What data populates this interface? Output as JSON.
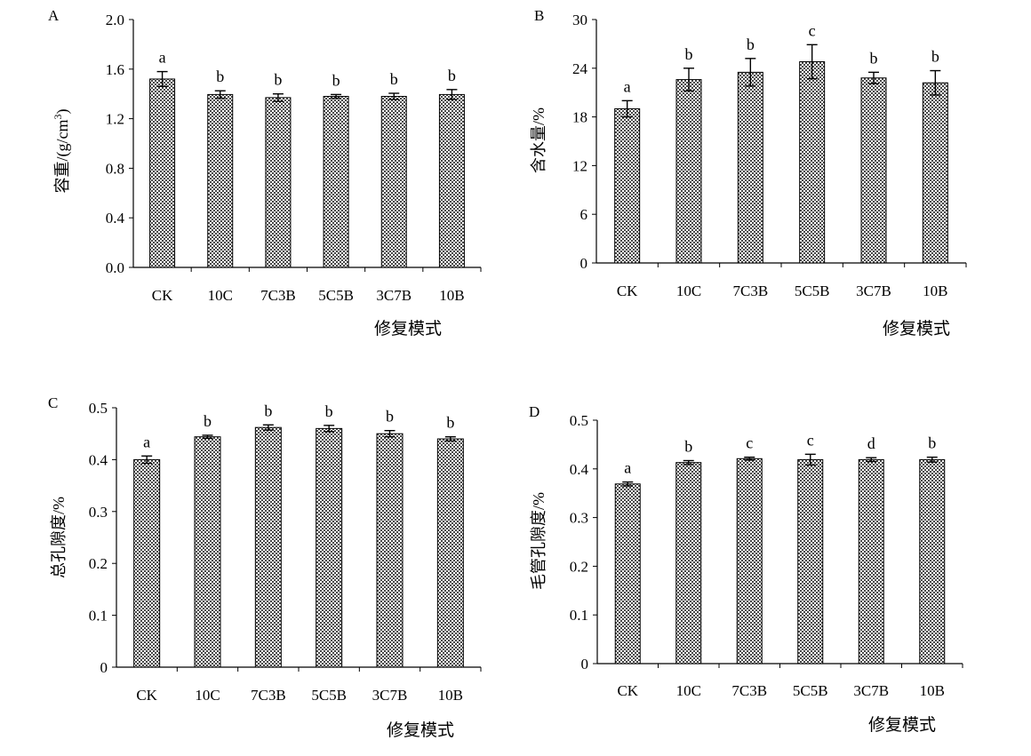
{
  "x_axis_title": "修复模式",
  "chart_data": [
    {
      "type": "bar",
      "panel": "A",
      "ylabel": "容重/(g/cm³)",
      "ylabel_parts": {
        "main": "容重/(g/cm",
        "sup": "3",
        "tail": ")"
      },
      "xlabel": "修复模式",
      "categories": [
        "CK",
        "10C",
        "7C3B",
        "5C5B",
        "3C7B",
        "10B"
      ],
      "values": [
        1.52,
        1.395,
        1.37,
        1.38,
        1.38,
        1.395
      ],
      "errors": [
        0.06,
        0.03,
        0.03,
        0.015,
        0.025,
        0.04
      ],
      "significance": [
        "a",
        "b",
        "b",
        "b",
        "b",
        "b"
      ],
      "ylim": [
        0,
        2.0
      ],
      "yticks": [
        "0.0",
        "0.4",
        "0.8",
        "1.2",
        "1.6",
        "2.0"
      ],
      "ytick_values": [
        0,
        0.4,
        0.8,
        1.2,
        1.6,
        2.0
      ],
      "grid": false
    },
    {
      "type": "bar",
      "panel": "B",
      "ylabel": "含水量/%",
      "xlabel": "修复模式",
      "categories": [
        "CK",
        "10C",
        "7C3B",
        "5C5B",
        "3C7B",
        "10B"
      ],
      "values": [
        19.0,
        22.6,
        23.5,
        24.8,
        22.8,
        22.2
      ],
      "errors": [
        1.0,
        1.4,
        1.7,
        2.1,
        0.7,
        1.5
      ],
      "significance": [
        "a",
        "b",
        "b",
        "c",
        "b",
        "b"
      ],
      "ylim": [
        0,
        30
      ],
      "yticks": [
        "0",
        "6",
        "12",
        "18",
        "24",
        "30"
      ],
      "ytick_values": [
        0,
        6,
        12,
        18,
        24,
        30
      ],
      "grid": false
    },
    {
      "type": "bar",
      "panel": "C",
      "ylabel": "总孔隙度/%",
      "xlabel": "修复模式",
      "categories": [
        "CK",
        "10C",
        "7C3B",
        "5C5B",
        "3C7B",
        "10B"
      ],
      "values": [
        0.4,
        0.444,
        0.462,
        0.46,
        0.45,
        0.44
      ],
      "errors": [
        0.007,
        0.003,
        0.005,
        0.006,
        0.006,
        0.004
      ],
      "significance": [
        "a",
        "b",
        "b",
        "b",
        "b",
        "b"
      ],
      "ylim": [
        0,
        0.5
      ],
      "yticks": [
        "0",
        "0.1",
        "0.2",
        "0.3",
        "0.4",
        "0.5"
      ],
      "ytick_values": [
        0,
        0.1,
        0.2,
        0.3,
        0.4,
        0.5
      ],
      "grid": false
    },
    {
      "type": "bar",
      "panel": "D",
      "ylabel": "毛管孔隙度/%",
      "xlabel": "修复模式",
      "categories": [
        "CK",
        "10C",
        "7C3B",
        "5C5B",
        "3C7B",
        "10B"
      ],
      "values": [
        0.369,
        0.413,
        0.421,
        0.419,
        0.419,
        0.419
      ],
      "errors": [
        0.004,
        0.004,
        0.003,
        0.011,
        0.004,
        0.005
      ],
      "significance": [
        "a",
        "b",
        "c",
        "c",
        "d",
        "b"
      ],
      "ylim": [
        0,
        0.5
      ],
      "yticks": [
        "0",
        "0.1",
        "0.2",
        "0.3",
        "0.4",
        "0.5"
      ],
      "ytick_values": [
        0,
        0.1,
        0.2,
        0.3,
        0.4,
        0.5
      ],
      "grid": false
    }
  ]
}
